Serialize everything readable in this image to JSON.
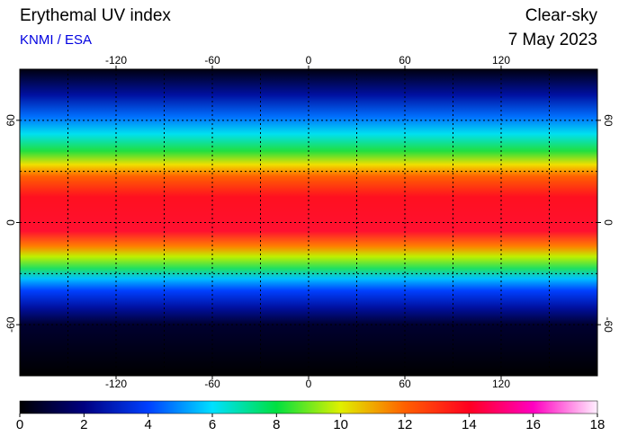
{
  "header": {
    "title": "Erythemal UV index",
    "source": "KNMI / ESA",
    "condition": "Clear-sky",
    "date": "7 May 2023"
  },
  "map": {
    "lonlim": [
      -180,
      180
    ],
    "latlim": [
      -90,
      90
    ],
    "lonticks": [
      -120,
      -60,
      0,
      60,
      120
    ],
    "latticks": [
      -60,
      0,
      60
    ],
    "longrid": [
      -150,
      -120,
      -90,
      -60,
      -30,
      0,
      30,
      60,
      90,
      120,
      150
    ],
    "latgrid": [
      -60,
      -30,
      0,
      30,
      60
    ],
    "field": [
      {
        "lat": 90,
        "color": "#000010"
      },
      {
        "lat": 75,
        "color": "#0010a0"
      },
      {
        "lat": 62,
        "color": "#0070ff"
      },
      {
        "lat": 52,
        "color": "#00e0f0"
      },
      {
        "lat": 42,
        "color": "#20e040"
      },
      {
        "lat": 34,
        "color": "#f0e000"
      },
      {
        "lat": 27,
        "color": "#ff6000"
      },
      {
        "lat": 15,
        "color": "#ff1020"
      },
      {
        "lat": -5,
        "color": "#ff1030"
      },
      {
        "lat": -14,
        "color": "#ff8000"
      },
      {
        "lat": -20,
        "color": "#c0f000"
      },
      {
        "lat": -27,
        "color": "#20e060"
      },
      {
        "lat": -33,
        "color": "#00c0ff"
      },
      {
        "lat": -40,
        "color": "#0040ff"
      },
      {
        "lat": -50,
        "color": "#0010a0"
      },
      {
        "lat": -60,
        "color": "#000030"
      },
      {
        "lat": -90,
        "color": "#000000"
      }
    ]
  },
  "colorbar": {
    "lim": [
      0,
      18
    ],
    "ticks": [
      0,
      2,
      4,
      6,
      8,
      10,
      12,
      14,
      16,
      18
    ],
    "stops": [
      {
        "value": 0,
        "color": "#000000"
      },
      {
        "value": 2,
        "color": "#000080"
      },
      {
        "value": 4,
        "color": "#0040ff"
      },
      {
        "value": 6,
        "color": "#00e0ff"
      },
      {
        "value": 8,
        "color": "#00e040"
      },
      {
        "value": 10,
        "color": "#e0f000"
      },
      {
        "value": 12,
        "color": "#ff6000"
      },
      {
        "value": 14,
        "color": "#ff0020"
      },
      {
        "value": 16,
        "color": "#ff00c0"
      },
      {
        "value": 18,
        "color": "#fff0ff"
      }
    ]
  }
}
